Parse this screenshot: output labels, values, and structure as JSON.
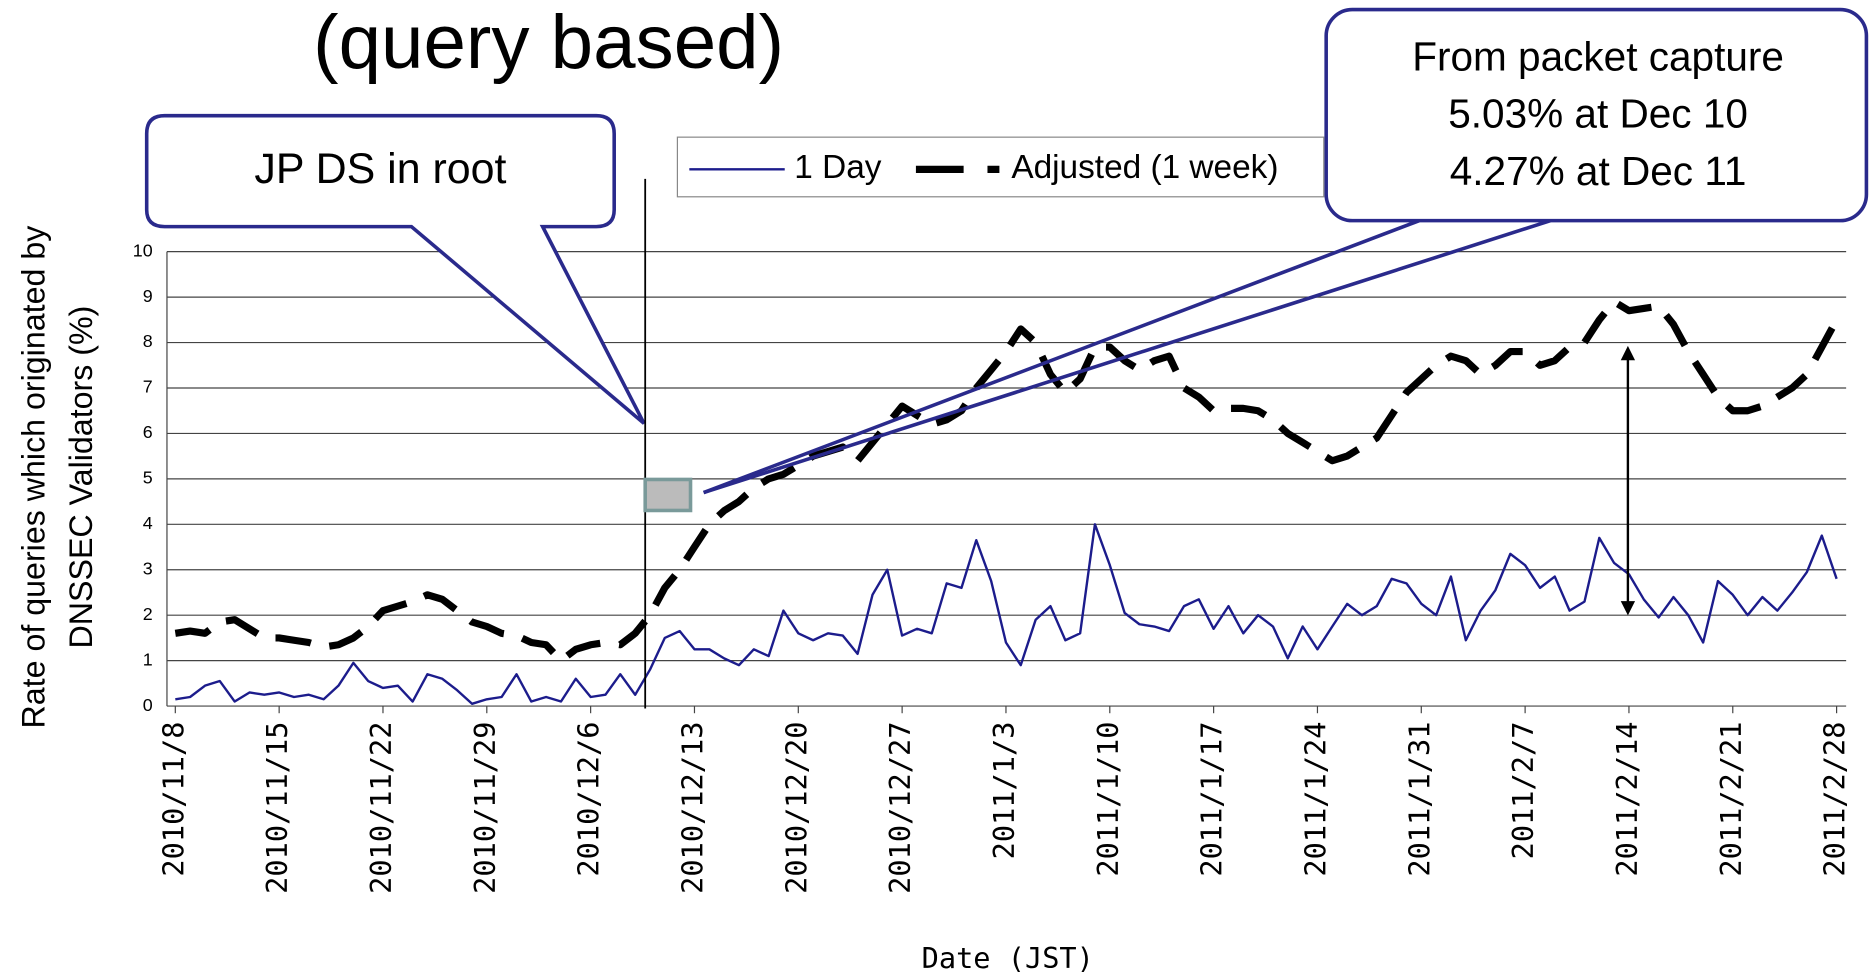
{
  "chart_data": {
    "type": "line",
    "title": "(query based)",
    "y_label": [
      "Rate of queries which originated by",
      "DNSSEC Validators (%)"
    ],
    "x_label": "Date (JST)",
    "annotations": [
      "JP DS in root",
      "From packet capture",
      "5.03% at Dec 10",
      "4.27% at Dec 11"
    ],
    "categories": [
      "2010/11/8",
      null,
      null,
      null,
      null,
      null,
      null,
      "2010/11/15",
      null,
      null,
      null,
      null,
      null,
      null,
      "2010/11/22",
      null,
      null,
      null,
      null,
      null,
      null,
      "2010/11/29",
      null,
      null,
      null,
      null,
      null,
      null,
      "2010/12/6",
      null,
      null,
      null,
      null,
      null,
      null,
      "2010/12/13",
      null,
      null,
      null,
      null,
      null,
      null,
      "2010/12/20",
      null,
      null,
      null,
      null,
      null,
      null,
      "2010/12/27",
      null,
      null,
      null,
      null,
      null,
      null,
      "2011/1/3",
      null,
      null,
      null,
      null,
      null,
      null,
      "2011/1/10",
      null,
      null,
      null,
      null,
      null,
      null,
      "2011/1/17",
      null,
      null,
      null,
      null,
      null,
      null,
      "2011/1/24",
      null,
      null,
      null,
      null,
      null,
      null,
      "2011/1/31",
      null,
      null,
      null,
      null,
      null,
      null,
      "2011/2/7",
      null,
      null,
      null,
      null,
      null,
      null,
      "2011/2/14",
      null,
      null,
      null,
      null,
      null,
      null,
      "2011/2/21",
      null,
      null,
      null,
      null,
      null,
      null,
      "2011/2/28"
    ],
    "series": [
      {
        "name": "1 Day",
        "color": "#1c1c8c",
        "style": "solid",
        "values": [
          0.15,
          0.2,
          0.45,
          0.55,
          0.1,
          0.3,
          0.25,
          0.3,
          0.2,
          0.25,
          0.15,
          0.45,
          0.95,
          0.55,
          0.4,
          0.45,
          0.1,
          0.7,
          0.6,
          0.35,
          0.05,
          0.15,
          0.2,
          0.7,
          0.1,
          0.2,
          0.1,
          0.6,
          0.2,
          0.25,
          0.7,
          0.25,
          0.8,
          1.5,
          1.65,
          1.25,
          1.25,
          1.05,
          0.9,
          1.25,
          1.1,
          2.1,
          1.6,
          1.45,
          1.6,
          1.55,
          1.15,
          2.45,
          3.0,
          1.55,
          1.7,
          1.6,
          2.7,
          2.6,
          3.65,
          2.75,
          1.4,
          0.9,
          1.9,
          2.2,
          1.45,
          1.6,
          4.0,
          3.1,
          2.05,
          1.8,
          1.75,
          1.65,
          2.2,
          2.35,
          1.7,
          2.2,
          1.6,
          2.0,
          1.75,
          1.05,
          1.75,
          1.25,
          1.75,
          2.25,
          2.0,
          2.2,
          2.8,
          2.7,
          2.25,
          2.0,
          2.85,
          1.45,
          2.1,
          2.55,
          3.35,
          3.1,
          2.6,
          2.85,
          2.1,
          2.3,
          3.7,
          3.15,
          2.9,
          2.35,
          1.95,
          2.4,
          2.0,
          1.4,
          2.75,
          2.45,
          2.0,
          2.4,
          2.1,
          2.5,
          2.95,
          3.75,
          2.8
        ]
      },
      {
        "name": "Adjusted (1 week)",
        "color": "#000000",
        "style": "dashed",
        "values": [
          1.6,
          1.65,
          1.6,
          1.85,
          1.9,
          1.7,
          1.5,
          1.5,
          1.45,
          1.4,
          1.3,
          1.35,
          1.5,
          1.75,
          2.1,
          2.2,
          2.3,
          2.45,
          2.35,
          2.1,
          1.85,
          1.75,
          1.6,
          1.55,
          1.4,
          1.35,
          1.0,
          1.25,
          1.35,
          1.4,
          1.35,
          1.6,
          2.0,
          2.6,
          3.0,
          3.5,
          4.0,
          4.3,
          4.5,
          4.8,
          5.0,
          5.1,
          5.3,
          5.5,
          5.6,
          5.7,
          5.4,
          5.8,
          6.2,
          6.6,
          6.4,
          6.2,
          6.3,
          6.5,
          7.0,
          7.4,
          7.8,
          8.3,
          8.0,
          7.3,
          6.9,
          7.2,
          7.9,
          7.9,
          7.6,
          7.4,
          7.6,
          7.7,
          7.0,
          6.8,
          6.5,
          6.55,
          6.55,
          6.5,
          6.3,
          6.0,
          5.8,
          5.6,
          5.4,
          5.5,
          5.7,
          5.9,
          6.4,
          6.9,
          7.2,
          7.5,
          7.7,
          7.6,
          7.3,
          7.5,
          7.8,
          7.8,
          7.5,
          7.6,
          7.9,
          8.0,
          8.5,
          8.9,
          8.7,
          8.75,
          8.8,
          8.4,
          7.8,
          7.3,
          6.8,
          6.5,
          6.5,
          6.6,
          6.8,
          7.0,
          7.3,
          7.9,
          8.5
        ]
      }
    ],
    "ylim": [
      0,
      10
    ],
    "yticks": [
      0,
      1,
      2,
      3,
      4,
      5,
      6,
      7,
      8,
      9,
      10
    ],
    "grid": true,
    "legend": "top"
  }
}
